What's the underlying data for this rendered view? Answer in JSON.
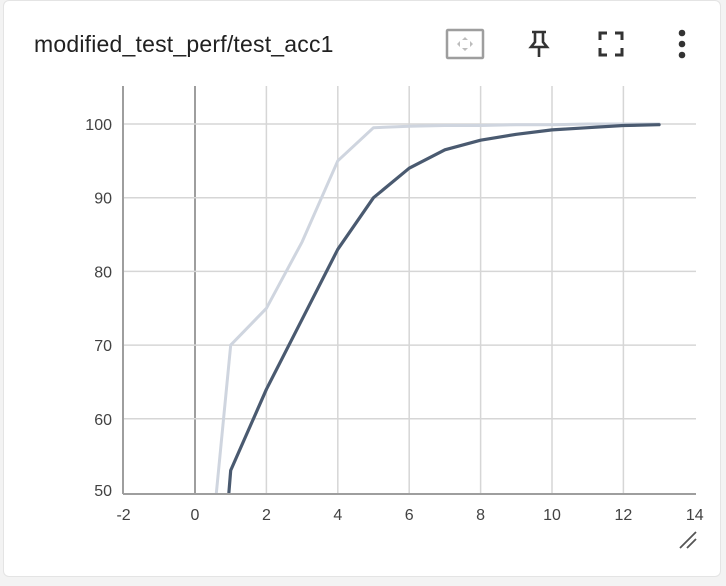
{
  "card": {
    "title": "modified_test_perf/test_acc1"
  },
  "toolbar": {
    "fit_icon": "fit-domain-icon",
    "pin_icon": "pin-icon",
    "fullscreen_icon": "fullscreen-icon",
    "more_icon": "more-vert-icon"
  },
  "colors": {
    "main_series": "#4a5a70",
    "smoothed_series": "#cfd5df",
    "grid": "#d6d6d6",
    "axis": "#9e9e9e"
  },
  "chart_data": {
    "type": "line",
    "title": "",
    "xlabel": "",
    "ylabel": "",
    "xlim": [
      -2,
      14
    ],
    "ylim": [
      50,
      105
    ],
    "x_ticks": [
      -2,
      0,
      2,
      4,
      6,
      8,
      10,
      12,
      14
    ],
    "y_ticks": [
      50,
      60,
      70,
      80,
      90,
      100
    ],
    "grid": true,
    "legend": "none",
    "series": [
      {
        "color": "#cfd5df",
        "points": [
          [
            0.6,
            50
          ],
          [
            1,
            70
          ],
          [
            2,
            75
          ],
          [
            3,
            84
          ],
          [
            4,
            95
          ],
          [
            5,
            99.5
          ],
          [
            6,
            99.7
          ],
          [
            7,
            99.8
          ],
          [
            8,
            99.8
          ],
          [
            9,
            99.9
          ],
          [
            10,
            99.9
          ],
          [
            11,
            100
          ],
          [
            12,
            100
          ],
          [
            13,
            100
          ]
        ]
      },
      {
        "color": "#4a5a70",
        "points": [
          [
            0.95,
            50
          ],
          [
            1,
            53
          ],
          [
            2,
            64
          ],
          [
            3,
            73.5
          ],
          [
            4,
            83
          ],
          [
            5,
            90
          ],
          [
            6,
            94
          ],
          [
            7,
            96.5
          ],
          [
            8,
            97.8
          ],
          [
            9,
            98.6
          ],
          [
            10,
            99.2
          ],
          [
            11,
            99.5
          ],
          [
            12,
            99.8
          ],
          [
            13,
            99.9
          ]
        ]
      }
    ]
  }
}
